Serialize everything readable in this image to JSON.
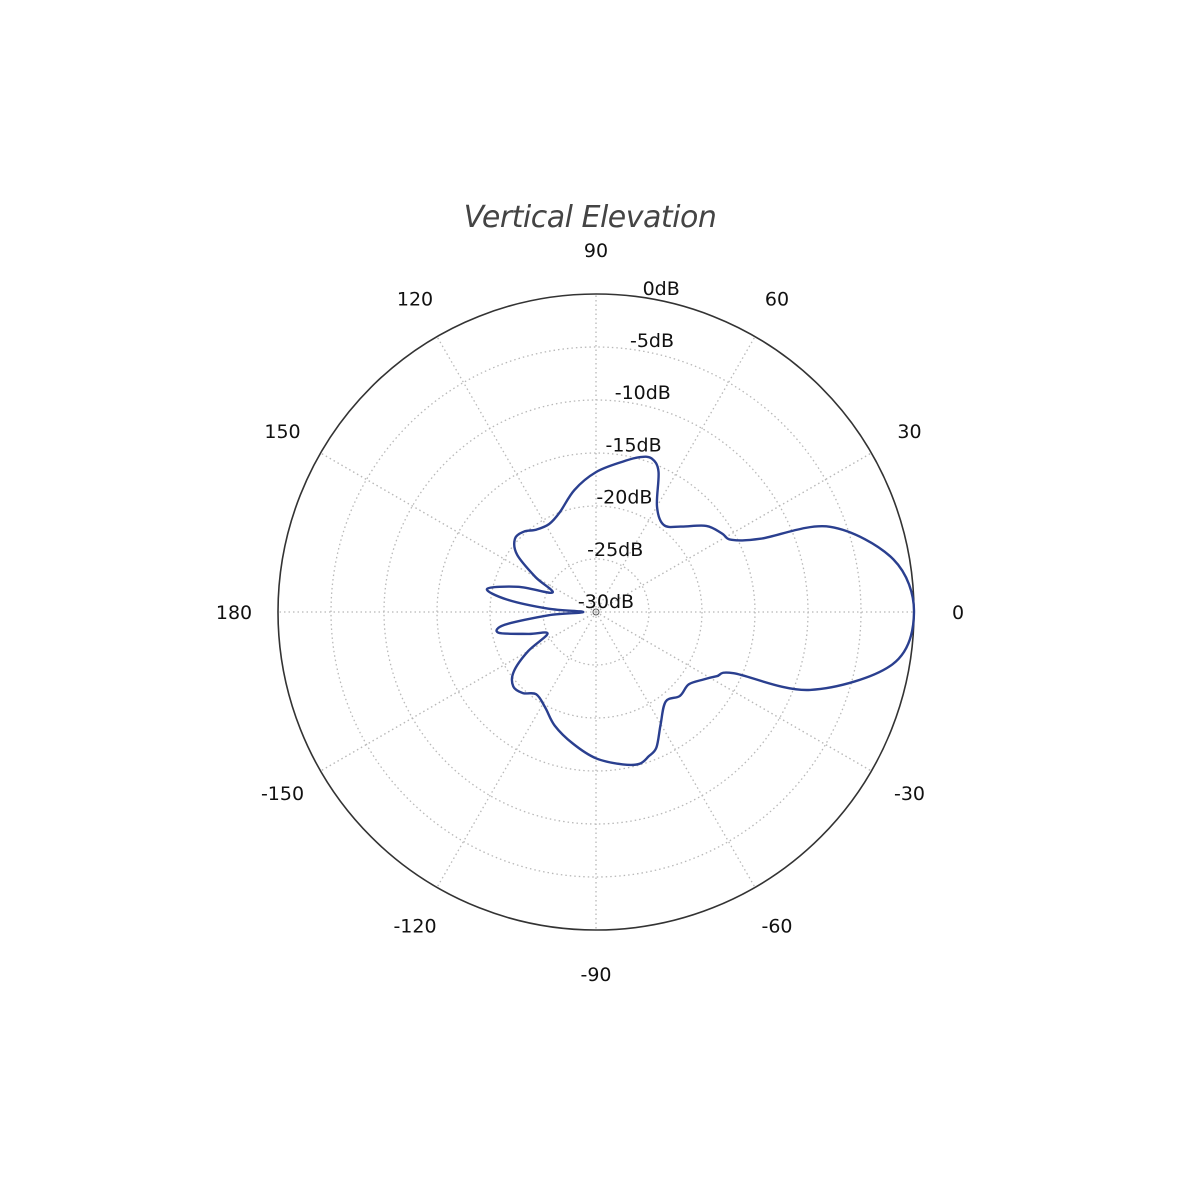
{
  "chart_data": {
    "type": "polar",
    "title": "Vertical Elevation",
    "angle_unit": "degrees",
    "radial_unit": "dB",
    "angle_tick_labels": [
      {
        "angle": 0,
        "label": "0"
      },
      {
        "angle": 30,
        "label": "30"
      },
      {
        "angle": 60,
        "label": "60"
      },
      {
        "angle": 90,
        "label": "90"
      },
      {
        "angle": 120,
        "label": "120"
      },
      {
        "angle": 150,
        "label": "150"
      },
      {
        "angle": 180,
        "label": "180"
      },
      {
        "angle": -150,
        "label": "-150"
      },
      {
        "angle": -120,
        "label": "-120"
      },
      {
        "angle": -90,
        "label": "-90"
      },
      {
        "angle": -60,
        "label": "-60"
      },
      {
        "angle": -30,
        "label": "-30"
      }
    ],
    "radial_tick_labels": [
      {
        "value": 0,
        "label": "0dB"
      },
      {
        "value": -5,
        "label": "-5dB"
      },
      {
        "value": -10,
        "label": "-10dB"
      },
      {
        "value": -15,
        "label": "-15dB"
      },
      {
        "value": -20,
        "label": "-20dB"
      },
      {
        "value": -25,
        "label": "-25dB"
      },
      {
        "value": -30,
        "label": "-30dB"
      }
    ],
    "rlim": [
      -30,
      0
    ],
    "grid": true,
    "series_color": "#2a3f8f",
    "pattern": {
      "theta": [
        0,
        10,
        20,
        24,
        28,
        32,
        38,
        45,
        52,
        60,
        66,
        70,
        74,
        80,
        90,
        100,
        110,
        118,
        126,
        132,
        138,
        144,
        150,
        156,
        162,
        168,
        172,
        176,
        180,
        -176,
        -172,
        -168,
        -162,
        -156,
        -150,
        -144,
        -138,
        -132,
        -126,
        -118,
        -110,
        -100,
        -90,
        -80,
        -74,
        -70,
        -66,
        -60,
        -52,
        -45,
        -38,
        -32,
        -28,
        -24,
        -20,
        -10
      ],
      "r": [
        0,
        -1.5,
        -6.5,
        -13.0,
        -15.5,
        -16.0,
        -16.8,
        -18.6,
        -19.6,
        -18.5,
        -15.5,
        -14.6,
        -14.8,
        -15.6,
        -16.8,
        -18.3,
        -20.0,
        -20.6,
        -20.4,
        -19.8,
        -19.7,
        -20.8,
        -23.4,
        -25.5,
        -22.3,
        -19.5,
        -21.5,
        -25.5,
        -28.8,
        -25.5,
        -21.3,
        -20.6,
        -23.3,
        -25.0,
        -22.6,
        -20.4,
        -19.5,
        -19.7,
        -20.4,
        -19.8,
        -18.6,
        -17.4,
        -16.2,
        -15.4,
        -15.1,
        -15.5,
        -16.0,
        -17.8,
        -19.3,
        -18.8,
        -18.9,
        -18.0,
        -17.1,
        -15.8,
        -8.5,
        -1.6
      ]
    }
  }
}
